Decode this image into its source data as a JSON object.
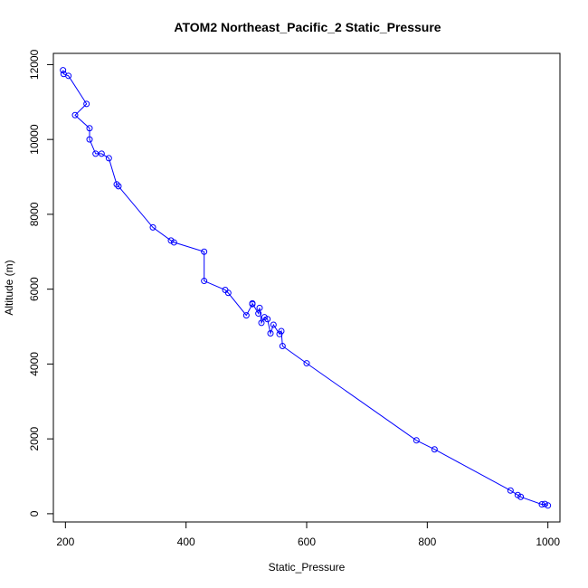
{
  "chart_data": {
    "type": "line",
    "title": "ATOM2 Northeast_Pacific_2 Static_Pressure",
    "xlabel": "Static_Pressure",
    "ylabel": "Altitude (m)",
    "xlim": [
      180,
      1020
    ],
    "ylim": [
      -220,
      12300
    ],
    "xticks": [
      200,
      400,
      600,
      800,
      1000
    ],
    "yticks": [
      0,
      2000,
      4000,
      6000,
      8000,
      10000,
      12000
    ],
    "grid": false,
    "legend": "none",
    "series": [
      {
        "color": "#0000ff",
        "marker": "open-circle",
        "x": [
          196,
          197,
          205,
          235,
          216,
          240,
          240,
          250,
          260,
          272,
          285,
          288,
          345,
          375,
          380,
          430,
          430,
          465,
          470,
          500,
          510,
          510,
          520,
          522,
          525,
          530,
          535,
          540,
          545,
          555,
          558,
          560,
          600,
          782,
          812,
          938,
          950,
          955,
          990,
          995,
          1000
        ],
        "y": [
          11850,
          11750,
          11700,
          10950,
          10650,
          10300,
          10000,
          9620,
          9620,
          9500,
          8800,
          8750,
          7650,
          7300,
          7250,
          7000,
          6220,
          5980,
          5900,
          5300,
          5600,
          5620,
          5350,
          5500,
          5100,
          5250,
          5200,
          4820,
          5050,
          4800,
          4880,
          4480,
          4020,
          1960,
          1720,
          620,
          500,
          450,
          250,
          260,
          220
        ]
      }
    ]
  }
}
